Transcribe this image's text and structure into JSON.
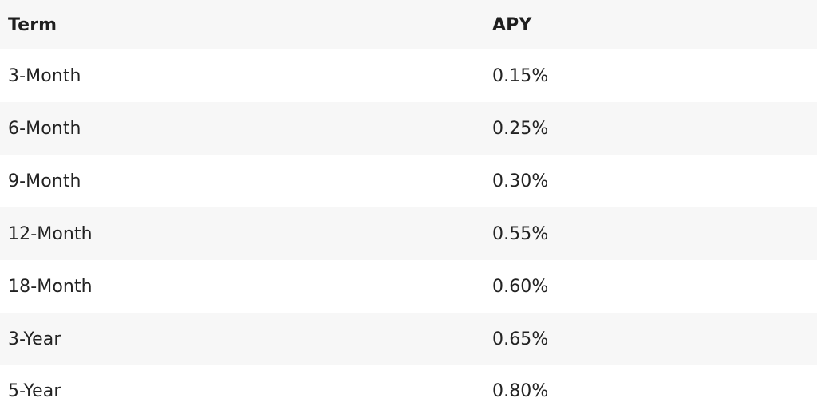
{
  "table": {
    "headers": {
      "term": "Term",
      "apy": "APY"
    },
    "rows": [
      {
        "term": "3-Month",
        "apy": "0.15%"
      },
      {
        "term": "6-Month",
        "apy": "0.25%"
      },
      {
        "term": "9-Month",
        "apy": "0.30%"
      },
      {
        "term": "12-Month",
        "apy": "0.55%"
      },
      {
        "term": "18-Month",
        "apy": "0.60%"
      },
      {
        "term": "3-Year",
        "apy": "0.65%"
      },
      {
        "term": "5-Year",
        "apy": "0.80%"
      }
    ]
  }
}
